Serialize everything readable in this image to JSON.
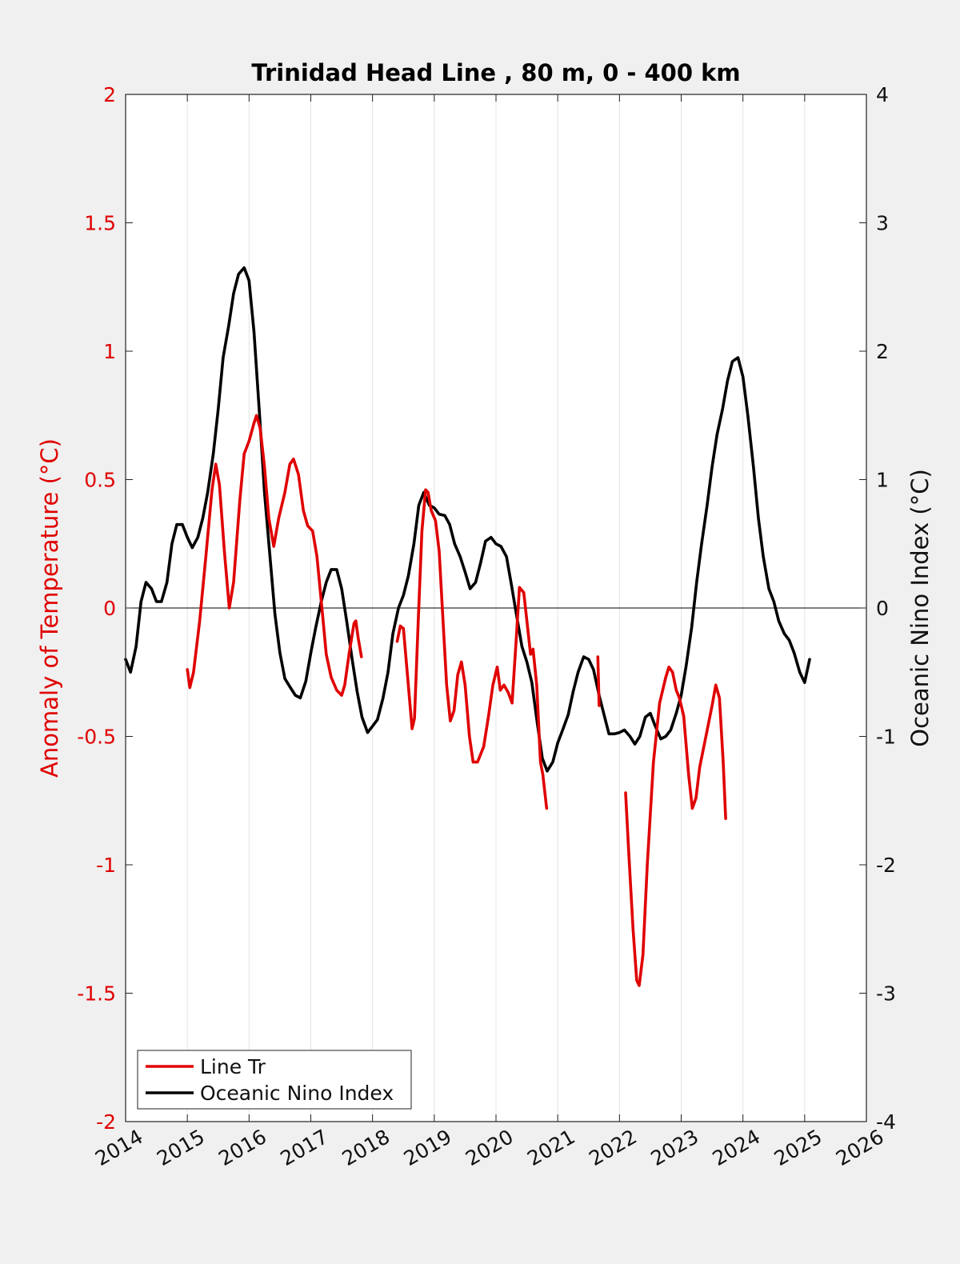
{
  "chart_data": {
    "type": "line",
    "title": "Trinidad Head Line , 80 m, 0 - 400 km",
    "xlabel": "",
    "xlim": [
      2014,
      2026
    ],
    "xticks": [
      2014,
      2015,
      2016,
      2017,
      2018,
      2019,
      2020,
      2021,
      2022,
      2023,
      2024,
      2025,
      2026
    ],
    "xtick_labels": [
      "2014",
      "2015",
      "2016",
      "2017",
      "2018",
      "2019",
      "2020",
      "2021",
      "2022",
      "2023",
      "2024",
      "2025",
      "2026"
    ],
    "ylabel_left": "Anomaly of Temperature (°C)",
    "ylim_left": [
      -2,
      2
    ],
    "yticks_left": [
      -2,
      -1.5,
      -1,
      -0.5,
      0,
      0.5,
      1,
      1.5,
      2
    ],
    "ytick_labels_left": [
      "-2",
      "-1.5",
      "-1",
      "-0.5",
      "0",
      "0.5",
      "1",
      "1.5",
      "2"
    ],
    "ylabel_right": "Oceanic Nino Index (°C)",
    "ylim_right": [
      -4,
      4
    ],
    "yticks_right": [
      -4,
      -3,
      -2,
      -1,
      0,
      1,
      2,
      3,
      4
    ],
    "ytick_labels_right": [
      "-4",
      "-3",
      "-2",
      "-1",
      "0",
      "1",
      "2",
      "3",
      "4"
    ],
    "grid": "vertical",
    "zero_line": true,
    "legend_position": "bottom-left",
    "series": [
      {
        "name": "Line Tr",
        "axis": "left",
        "color": "#e00000",
        "segments": [
          [
            [
              2015.0,
              -0.24
            ],
            [
              2015.04,
              -0.31
            ],
            [
              2015.1,
              -0.25
            ],
            [
              2015.2,
              -0.05
            ],
            [
              2015.3,
              0.2
            ],
            [
              2015.4,
              0.46
            ],
            [
              2015.46,
              0.56
            ],
            [
              2015.52,
              0.48
            ],
            [
              2015.6,
              0.22
            ],
            [
              2015.68,
              0.0
            ],
            [
              2015.75,
              0.1
            ],
            [
              2015.85,
              0.42
            ],
            [
              2015.92,
              0.6
            ],
            [
              2016.0,
              0.65
            ],
            [
              2016.08,
              0.72
            ],
            [
              2016.12,
              0.75
            ],
            [
              2016.18,
              0.7
            ],
            [
              2016.25,
              0.55
            ],
            [
              2016.32,
              0.35
            ],
            [
              2016.4,
              0.24
            ],
            [
              2016.48,
              0.35
            ],
            [
              2016.58,
              0.45
            ],
            [
              2016.66,
              0.56
            ],
            [
              2016.72,
              0.58
            ],
            [
              2016.8,
              0.52
            ],
            [
              2016.88,
              0.38
            ],
            [
              2016.95,
              0.32
            ],
            [
              2017.03,
              0.3
            ],
            [
              2017.1,
              0.2
            ],
            [
              2017.18,
              0.0
            ],
            [
              2017.25,
              -0.18
            ],
            [
              2017.33,
              -0.27
            ],
            [
              2017.42,
              -0.32
            ],
            [
              2017.5,
              -0.34
            ],
            [
              2017.55,
              -0.3
            ],
            [
              2017.62,
              -0.18
            ],
            [
              2017.7,
              -0.06
            ],
            [
              2017.73,
              -0.05
            ],
            [
              2017.77,
              -0.12
            ],
            [
              2017.82,
              -0.19
            ]
          ],
          [
            [
              2018.4,
              -0.13
            ],
            [
              2018.45,
              -0.07
            ],
            [
              2018.5,
              -0.08
            ],
            [
              2018.58,
              -0.3
            ],
            [
              2018.64,
              -0.47
            ],
            [
              2018.68,
              -0.43
            ],
            [
              2018.74,
              -0.05
            ],
            [
              2018.8,
              0.3
            ],
            [
              2018.86,
              0.46
            ],
            [
              2018.9,
              0.45
            ],
            [
              2018.95,
              0.38
            ],
            [
              2019.02,
              0.34
            ],
            [
              2019.08,
              0.22
            ],
            [
              2019.13,
              0.0
            ],
            [
              2019.2,
              -0.3
            ],
            [
              2019.26,
              -0.44
            ],
            [
              2019.32,
              -0.4
            ],
            [
              2019.38,
              -0.26
            ],
            [
              2019.44,
              -0.21
            ],
            [
              2019.5,
              -0.3
            ],
            [
              2019.57,
              -0.5
            ],
            [
              2019.63,
              -0.6
            ],
            [
              2019.7,
              -0.6
            ],
            [
              2019.8,
              -0.54
            ],
            [
              2019.88,
              -0.42
            ],
            [
              2019.95,
              -0.3
            ],
            [
              2020.02,
              -0.23
            ],
            [
              2020.07,
              -0.32
            ],
            [
              2020.13,
              -0.3
            ],
            [
              2020.2,
              -0.33
            ],
            [
              2020.26,
              -0.37
            ],
            [
              2020.32,
              -0.15
            ],
            [
              2020.38,
              0.08
            ],
            [
              2020.45,
              0.06
            ],
            [
              2020.5,
              -0.05
            ],
            [
              2020.56,
              -0.18
            ],
            [
              2020.6,
              -0.16
            ],
            [
              2020.66,
              -0.3
            ],
            [
              2020.72,
              -0.6
            ],
            [
              2020.76,
              -0.65
            ],
            [
              2020.82,
              -0.78
            ]
          ],
          [
            [
              2021.65,
              -0.19
            ],
            [
              2021.67,
              -0.38
            ]
          ],
          [
            [
              2022.1,
              -0.72
            ],
            [
              2022.15,
              -0.95
            ],
            [
              2022.22,
              -1.25
            ],
            [
              2022.28,
              -1.45
            ],
            [
              2022.32,
              -1.47
            ],
            [
              2022.38,
              -1.35
            ],
            [
              2022.45,
              -1.0
            ],
            [
              2022.55,
              -0.6
            ],
            [
              2022.65,
              -0.37
            ],
            [
              2022.75,
              -0.27
            ],
            [
              2022.8,
              -0.23
            ],
            [
              2022.86,
              -0.25
            ],
            [
              2022.92,
              -0.32
            ],
            [
              2022.97,
              -0.35
            ],
            [
              2023.04,
              -0.42
            ],
            [
              2023.12,
              -0.65
            ],
            [
              2023.18,
              -0.78
            ],
            [
              2023.24,
              -0.74
            ],
            [
              2023.3,
              -0.62
            ],
            [
              2023.4,
              -0.5
            ],
            [
              2023.5,
              -0.38
            ],
            [
              2023.56,
              -0.3
            ],
            [
              2023.62,
              -0.35
            ],
            [
              2023.68,
              -0.6
            ],
            [
              2023.72,
              -0.82
            ]
          ]
        ]
      },
      {
        "name": "Oceanic Nino Index",
        "axis": "right",
        "color": "#000000",
        "segments": [
          [
            [
              2014.0,
              -0.4
            ],
            [
              2014.08,
              -0.5
            ],
            [
              2014.17,
              -0.3
            ],
            [
              2014.25,
              0.05
            ],
            [
              2014.33,
              0.2
            ],
            [
              2014.42,
              0.15
            ],
            [
              2014.5,
              0.05
            ],
            [
              2014.58,
              0.05
            ],
            [
              2014.67,
              0.2
            ],
            [
              2014.75,
              0.5
            ],
            [
              2014.83,
              0.65
            ],
            [
              2014.92,
              0.65
            ],
            [
              2015.0,
              0.55
            ],
            [
              2015.08,
              0.47
            ],
            [
              2015.17,
              0.55
            ],
            [
              2015.25,
              0.7
            ],
            [
              2015.33,
              0.9
            ],
            [
              2015.42,
              1.2
            ],
            [
              2015.5,
              1.55
            ],
            [
              2015.58,
              1.95
            ],
            [
              2015.67,
              2.2
            ],
            [
              2015.75,
              2.45
            ],
            [
              2015.83,
              2.6
            ],
            [
              2015.92,
              2.65
            ],
            [
              2016.0,
              2.55
            ],
            [
              2016.08,
              2.15
            ],
            [
              2016.17,
              1.5
            ],
            [
              2016.25,
              0.9
            ],
            [
              2016.33,
              0.45
            ],
            [
              2016.42,
              -0.05
            ],
            [
              2016.5,
              -0.35
            ],
            [
              2016.58,
              -0.55
            ],
            [
              2016.67,
              -0.62
            ],
            [
              2016.75,
              -0.68
            ],
            [
              2016.83,
              -0.7
            ],
            [
              2016.92,
              -0.57
            ],
            [
              2017.0,
              -0.35
            ],
            [
              2017.08,
              -0.15
            ],
            [
              2017.17,
              0.05
            ],
            [
              2017.25,
              0.2
            ],
            [
              2017.33,
              0.3
            ],
            [
              2017.42,
              0.3
            ],
            [
              2017.5,
              0.15
            ],
            [
              2017.58,
              -0.1
            ],
            [
              2017.67,
              -0.4
            ],
            [
              2017.75,
              -0.65
            ],
            [
              2017.83,
              -0.85
            ],
            [
              2017.92,
              -0.97
            ],
            [
              2018.0,
              -0.92
            ],
            [
              2018.08,
              -0.87
            ],
            [
              2018.17,
              -0.7
            ],
            [
              2018.25,
              -0.5
            ],
            [
              2018.33,
              -0.2
            ],
            [
              2018.42,
              0.0
            ],
            [
              2018.5,
              0.1
            ],
            [
              2018.58,
              0.25
            ],
            [
              2018.67,
              0.5
            ],
            [
              2018.75,
              0.8
            ],
            [
              2018.83,
              0.9
            ],
            [
              2018.92,
              0.8
            ],
            [
              2019.0,
              0.78
            ],
            [
              2019.08,
              0.73
            ],
            [
              2019.17,
              0.72
            ],
            [
              2019.25,
              0.65
            ],
            [
              2019.33,
              0.5
            ],
            [
              2019.42,
              0.4
            ],
            [
              2019.5,
              0.28
            ],
            [
              2019.58,
              0.15
            ],
            [
              2019.67,
              0.2
            ],
            [
              2019.75,
              0.35
            ],
            [
              2019.83,
              0.52
            ],
            [
              2019.92,
              0.55
            ],
            [
              2020.0,
              0.5
            ],
            [
              2020.08,
              0.48
            ],
            [
              2020.17,
              0.4
            ],
            [
              2020.25,
              0.18
            ],
            [
              2020.33,
              -0.05
            ],
            [
              2020.42,
              -0.3
            ],
            [
              2020.5,
              -0.42
            ],
            [
              2020.58,
              -0.58
            ],
            [
              2020.67,
              -0.9
            ],
            [
              2020.75,
              -1.17
            ],
            [
              2020.83,
              -1.27
            ],
            [
              2020.92,
              -1.2
            ],
            [
              2021.0,
              -1.05
            ],
            [
              2021.08,
              -0.95
            ],
            [
              2021.17,
              -0.83
            ],
            [
              2021.25,
              -0.65
            ],
            [
              2021.33,
              -0.5
            ],
            [
              2021.42,
              -0.38
            ],
            [
              2021.5,
              -0.4
            ],
            [
              2021.58,
              -0.48
            ],
            [
              2021.67,
              -0.68
            ],
            [
              2021.75,
              -0.83
            ],
            [
              2021.83,
              -0.98
            ],
            [
              2021.92,
              -0.98
            ],
            [
              2022.0,
              -0.97
            ],
            [
              2022.08,
              -0.95
            ],
            [
              2022.17,
              -1.0
            ],
            [
              2022.25,
              -1.06
            ],
            [
              2022.33,
              -1.0
            ],
            [
              2022.42,
              -0.85
            ],
            [
              2022.5,
              -0.82
            ],
            [
              2022.58,
              -0.92
            ],
            [
              2022.67,
              -1.02
            ],
            [
              2022.75,
              -1.0
            ],
            [
              2022.83,
              -0.95
            ],
            [
              2022.92,
              -0.82
            ],
            [
              2023.0,
              -0.68
            ],
            [
              2023.08,
              -0.45
            ],
            [
              2023.17,
              -0.15
            ],
            [
              2023.25,
              0.2
            ],
            [
              2023.33,
              0.5
            ],
            [
              2023.42,
              0.8
            ],
            [
              2023.5,
              1.1
            ],
            [
              2023.58,
              1.35
            ],
            [
              2023.67,
              1.55
            ],
            [
              2023.75,
              1.77
            ],
            [
              2023.83,
              1.92
            ],
            [
              2023.92,
              1.95
            ],
            [
              2024.0,
              1.8
            ],
            [
              2024.08,
              1.5
            ],
            [
              2024.17,
              1.1
            ],
            [
              2024.25,
              0.7
            ],
            [
              2024.33,
              0.4
            ],
            [
              2024.42,
              0.15
            ],
            [
              2024.5,
              0.05
            ],
            [
              2024.58,
              -0.1
            ],
            [
              2024.67,
              -0.2
            ],
            [
              2024.75,
              -0.25
            ],
            [
              2024.83,
              -0.35
            ],
            [
              2024.92,
              -0.5
            ],
            [
              2025.0,
              -0.58
            ],
            [
              2025.08,
              -0.4
            ]
          ]
        ]
      }
    ]
  }
}
